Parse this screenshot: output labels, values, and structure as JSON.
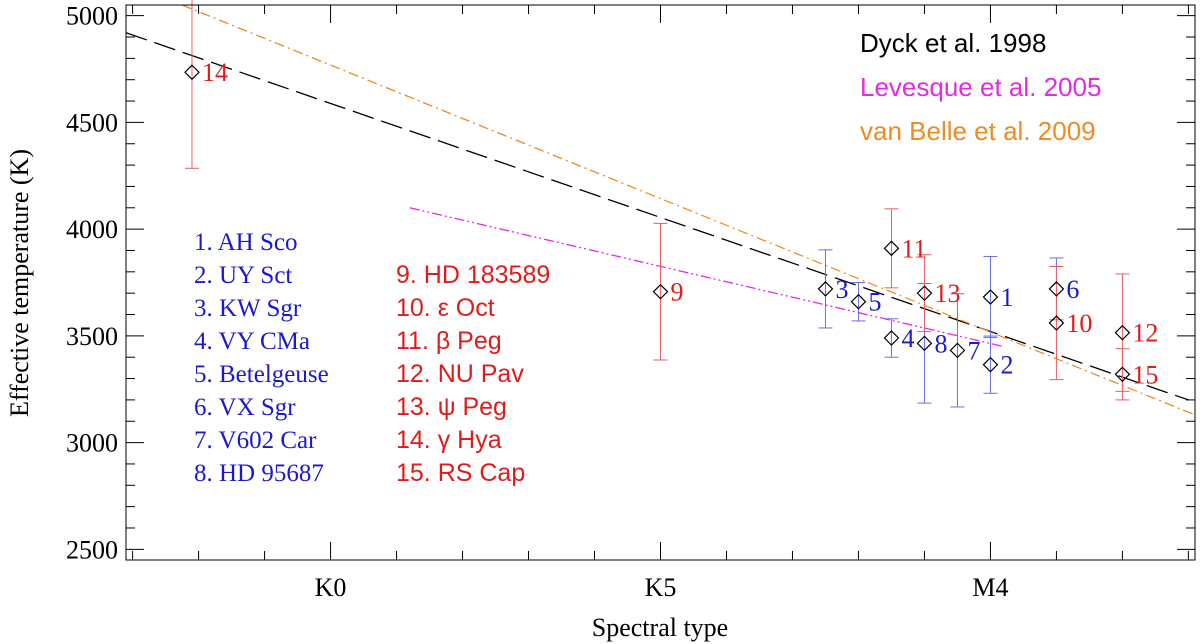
{
  "chart_data": {
    "type": "scatter",
    "title": "",
    "xlabel": "Spectral type",
    "ylabel": "Effective temperature (K)",
    "xlim": [
      -3.1,
      13.1
    ],
    "ylim": [
      2450,
      5050
    ],
    "x_ticks": [
      {
        "value": 0,
        "label": "K0"
      },
      {
        "value": 5,
        "label": "K5"
      },
      {
        "value": 10,
        "label": "M4"
      }
    ],
    "x_minor_step": 1,
    "y_ticks": [
      2500,
      3000,
      3500,
      4000,
      4500,
      5000
    ],
    "y_minor_step": 100,
    "point_color": "#000000",
    "error_color_blue": "#6b6be8",
    "error_color_red": "#e86060",
    "stars": [
      {
        "id": "1",
        "name": "AH Sco",
        "group": "blue",
        "x": 10.0,
        "y": 3682,
        "err": 190
      },
      {
        "id": "2",
        "name": "UY Sct",
        "group": "blue",
        "x": 10.0,
        "y": 3365,
        "err": 134
      },
      {
        "id": "3",
        "name": "KW Sgr",
        "group": "blue",
        "x": 7.5,
        "y": 3720,
        "err": 183
      },
      {
        "id": "4",
        "name": "VY CMa",
        "group": "blue",
        "x": 8.5,
        "y": 3490,
        "err": 90
      },
      {
        "id": "5",
        "name": "Betelgeuse",
        "group": "blue",
        "x": 8.0,
        "y": 3660,
        "err": 90
      },
      {
        "id": "6",
        "name": "VX Sgr",
        "group": "blue",
        "x": 11.0,
        "y": 3720,
        "err": 145
      },
      {
        "id": "7",
        "name": "V602 Car",
        "group": "blue",
        "x": 9.5,
        "y": 3432,
        "err": 265
      },
      {
        "id": "8",
        "name": "HD 95687",
        "group": "blue",
        "x": 9.0,
        "y": 3465,
        "err": 280
      },
      {
        "id": "9",
        "name": "HD 183589",
        "group": "red",
        "x": 5.0,
        "y": 3707,
        "err": 320
      },
      {
        "id": "10",
        "name": "ε Oct",
        "group": "red",
        "x": 11.0,
        "y": 3560,
        "err": 265
      },
      {
        "id": "11",
        "name": "β Peg",
        "group": "red",
        "x": 8.5,
        "y": 3910,
        "err": 185
      },
      {
        "id": "12",
        "name": "NU Pav",
        "group": "red",
        "x": 12.0,
        "y": 3515,
        "err": 275
      },
      {
        "id": "13",
        "name": "ψ Peg",
        "group": "red",
        "x": 9.0,
        "y": 3700,
        "err": 180
      },
      {
        "id": "14",
        "name": "γ Hya",
        "group": "red",
        "x": -2.1,
        "y": 4735,
        "err": 450
      },
      {
        "id": "15",
        "name": "RS Cap",
        "group": "red",
        "x": 12.0,
        "y": 3320,
        "err": 120
      }
    ],
    "relations": [
      {
        "name": "Dyck et al. 1998",
        "color": "#000000",
        "style": "dashed",
        "x": [
          -3.1,
          13.0
        ],
        "y": [
          4920,
          3200
        ]
      },
      {
        "name": "Levesque et al. 2005",
        "color": "#e52ae5",
        "style": "dash-dot-dot",
        "x": [
          1.2,
          10.2
        ],
        "y": [
          4100,
          3450
        ]
      },
      {
        "name": "van Belle et al. 2009",
        "color": "#f08a24",
        "style": "dash-dot",
        "x": [
          -2.25,
          13.1
        ],
        "y": [
          5050,
          3130
        ]
      }
    ],
    "legend": {
      "position": "top-right",
      "entries": [
        "Dyck et al. 1998",
        "Levesque et al. 2005",
        "van Belle et al. 2009"
      ]
    },
    "labels_blue": {
      "color": "#1a1acc",
      "items": [
        "1. AH Sco",
        "2. UY Sct",
        "3. KW Sgr",
        "4. VY CMa",
        "5. Betelgeuse",
        "6. VX Sgr",
        "7. V602 Car",
        "8. HD 95687"
      ]
    },
    "labels_red": {
      "color": "#e01b1b",
      "items": [
        "9. HD 183589",
        "10. ε Oct",
        "11. β Peg",
        "12. NU Pav",
        "13. ψ Peg",
        "14. γ Hya",
        "15. RS Cap"
      ]
    }
  }
}
